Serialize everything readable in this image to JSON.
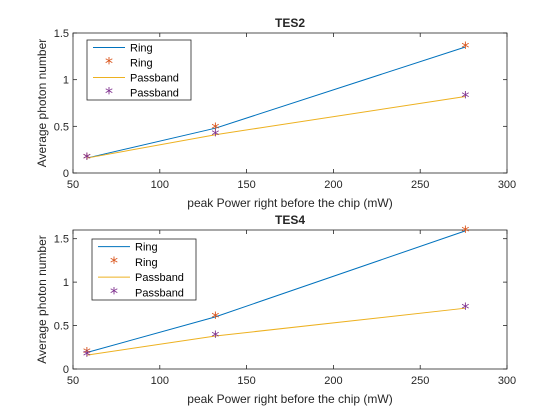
{
  "chart_data": [
    {
      "type": "line",
      "title": "TES2",
      "xlabel": "peak Power right before the chip (mW)",
      "ylabel": "Average photon number",
      "xlim": [
        50,
        300
      ],
      "ylim": [
        0,
        1.5
      ],
      "xticks": [
        50,
        100,
        150,
        200,
        250,
        300
      ],
      "yticks": [
        0,
        0.5,
        1,
        1.5
      ],
      "xtick_labels": [
        "50",
        "100",
        "150",
        "200",
        "250",
        "300"
      ],
      "ytick_labels": [
        "0",
        "0.5",
        "1",
        "1.5"
      ],
      "grid": false,
      "legend_position": "top-left",
      "x": [
        58,
        132,
        276
      ],
      "series": [
        {
          "name": "Ring",
          "style": "line",
          "color": "#0072BD",
          "values": [
            0.16,
            0.48,
            1.35
          ]
        },
        {
          "name": "Ring",
          "style": "marker",
          "marker": "*",
          "color": "#D95319",
          "values": [
            0.16,
            0.48,
            1.35
          ]
        },
        {
          "name": "Passband",
          "style": "line",
          "color": "#EDB120",
          "values": [
            0.16,
            0.41,
            0.82
          ]
        },
        {
          "name": "Passband",
          "style": "marker",
          "marker": "*",
          "color": "#7E2F8E",
          "values": [
            0.16,
            0.41,
            0.82
          ]
        }
      ]
    },
    {
      "type": "line",
      "title": "TES4",
      "xlabel": "peak Power right before the chip (mW)",
      "ylabel": "Average photon number",
      "xlim": [
        50,
        300
      ],
      "ylim": [
        0,
        1.6
      ],
      "xticks": [
        50,
        100,
        150,
        200,
        250,
        300
      ],
      "yticks": [
        0,
        0.5,
        1,
        1.5
      ],
      "xtick_labels": [
        "50",
        "100",
        "150",
        "200",
        "250",
        "300"
      ],
      "ytick_labels": [
        "0",
        "0.5",
        "1",
        "1.5"
      ],
      "grid": false,
      "legend_position": "top-left",
      "x": [
        58,
        132,
        276
      ],
      "series": [
        {
          "name": "Ring",
          "style": "line",
          "color": "#0072BD",
          "values": [
            0.19,
            0.6,
            1.59
          ]
        },
        {
          "name": "Ring",
          "style": "marker",
          "marker": "*",
          "color": "#D95319",
          "values": [
            0.19,
            0.6,
            1.59
          ]
        },
        {
          "name": "Passband",
          "style": "line",
          "color": "#EDB120",
          "values": [
            0.16,
            0.38,
            0.7
          ]
        },
        {
          "name": "Passband",
          "style": "marker",
          "marker": "*",
          "color": "#7E2F8E",
          "values": [
            0.16,
            0.38,
            0.7
          ]
        }
      ]
    }
  ]
}
